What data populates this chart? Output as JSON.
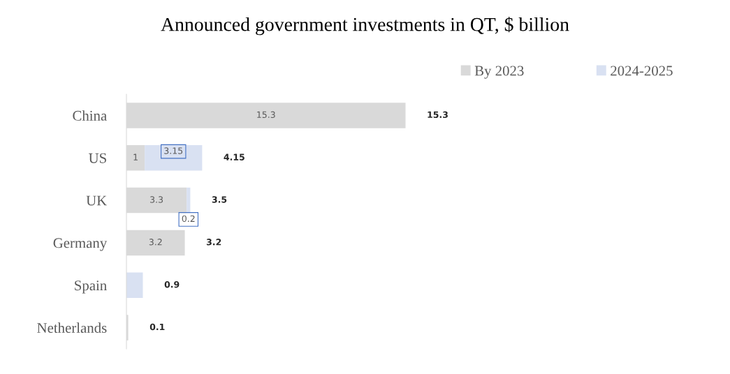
{
  "chart_data": {
    "type": "bar",
    "orientation": "horizontal",
    "stacked": true,
    "title": "Announced government investments in QT, $ billion",
    "categories": [
      "China",
      "US",
      "UK",
      "Germany",
      "Spain",
      "Netherlands"
    ],
    "series": [
      {
        "name": "By 2023",
        "color": "#d9d9d9",
        "values": [
          15.3,
          1,
          3.3,
          3.2,
          null,
          0.1
        ],
        "value_labels": [
          "15.3",
          "1",
          "3.3",
          "3.2",
          null,
          null
        ]
      },
      {
        "name": "2024-2025",
        "color": "#d9e1f2",
        "values": [
          null,
          3.15,
          0.2,
          null,
          0.9,
          null
        ],
        "value_labels": [
          null,
          "3.15",
          "0.2",
          null,
          null,
          null
        ]
      }
    ],
    "totals": [
      "15.3",
      "4.15",
      "3.5",
      "3.2",
      "0.9",
      "0.1"
    ],
    "legend": "top right",
    "grid": false
  }
}
